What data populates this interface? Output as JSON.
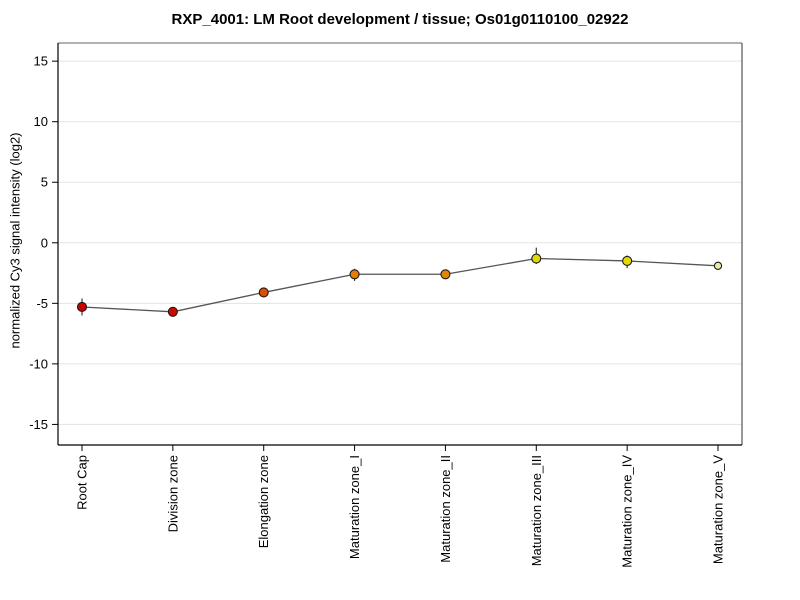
{
  "page": {
    "background": "#ffffff"
  },
  "chart_data": {
    "type": "line",
    "title": "RXP_4001: LM Root development / tissue; Os01g0110100_02922",
    "xlabel": "",
    "ylabel": "normalized Cy3 signal intensity (log2)",
    "categories": [
      "Root Cap",
      "Division zone",
      "Elongation zone",
      "Maturation zone_I",
      "Maturation zone_II",
      "Maturation zone_III",
      "Maturation zone_IV",
      "Maturation zone_V"
    ],
    "series": [
      {
        "name": "normalized Cy3 signal intensity (log2)",
        "values": [
          -5.3,
          -5.7,
          -4.1,
          -2.6,
          -2.6,
          -1.3,
          -1.5,
          -1.9
        ],
        "error_low": [
          -6.0,
          -6.1,
          -4.5,
          -3.15,
          -2.9,
          -1.75,
          -2.1,
          -2.15
        ],
        "error_high": [
          -4.6,
          -5.3,
          -3.75,
          -2.15,
          -2.25,
          -0.4,
          -1.05,
          -1.65
        ],
        "point_colors": [
          "#cc0000",
          "#cc0a00",
          "#dc4f00",
          "#e67c00",
          "#e68600",
          "#dfd800",
          "#e3da00",
          "#ebeba6"
        ],
        "point_radii": [
          4.5,
          4.5,
          4.5,
          4.5,
          4.5,
          4.5,
          4.5,
          3.6
        ]
      }
    ],
    "ylim": [
      -16.7,
      16.5
    ],
    "yticks": [
      15,
      10,
      5,
      0,
      -5,
      -10,
      -15
    ],
    "grid": "horizontal",
    "legend": "none",
    "line_color": "#555555",
    "error_bar_color": "#3a3a3a",
    "grid_color": "#e3e3e3",
    "axis_color": "#000000",
    "frame_top_color": "#999999",
    "frame_right_color": "#555555",
    "point_outline_color": "#1a1a1a"
  }
}
